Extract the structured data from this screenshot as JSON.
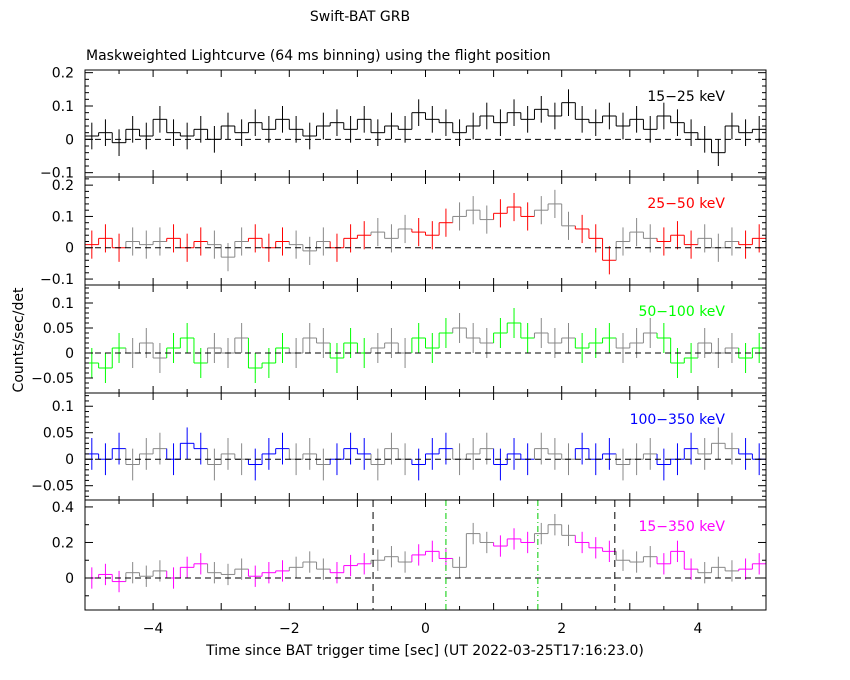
{
  "chart_data": {
    "type": "line",
    "title": "Swift-BAT GRB",
    "subtitle": "Maskweighted Lightcurve (64 ms binning) using the flight position",
    "xlabel": "Time since BAT trigger time [sec] (UT 2022-03-25T17:16:23.0)",
    "ylabel": "Counts/sec/det",
    "xlim": [
      -5,
      5
    ],
    "x_ticks": [
      -4,
      -2,
      0,
      2,
      4
    ],
    "x_tick_labels": [
      "−4",
      "−2",
      "0",
      "2",
      "4"
    ],
    "bin_width": 0.2,
    "x_start": -5,
    "alt_color": "#888888",
    "panels": [
      {
        "name": "15-25 keV",
        "label": "15−25 keV",
        "color": "#000000",
        "ylim": [
          -0.113,
          0.208
        ],
        "y_ticks": [
          -0.1,
          0,
          0.1,
          0.2
        ],
        "y_tick_labels": [
          "−0.1",
          "0",
          "0.1",
          "0.2"
        ],
        "minor_step": 0.02,
        "error": 0.04,
        "values": [
          0.01,
          0.02,
          -0.01,
          0.03,
          0.01,
          0.06,
          0.02,
          0.01,
          0.03,
          0.0,
          0.04,
          0.02,
          0.05,
          0.03,
          0.06,
          0.03,
          0.01,
          0.04,
          0.05,
          0.03,
          0.06,
          0.02,
          0.04,
          0.03,
          0.08,
          0.06,
          0.05,
          0.02,
          0.04,
          0.07,
          0.05,
          0.08,
          0.06,
          0.09,
          0.07,
          0.11,
          0.06,
          0.05,
          0.07,
          0.04,
          0.06,
          0.03,
          0.07,
          0.05,
          0.02,
          0.0,
          -0.04,
          0.04,
          0.02,
          0.03
        ]
      },
      {
        "name": "25-50 keV",
        "label": "25−50 keV",
        "color": "#ff0000",
        "ylim": [
          -0.119,
          0.226
        ],
        "y_ticks": [
          -0.1,
          0,
          0.1,
          0.2
        ],
        "y_tick_labels": [
          "−0.1",
          "0",
          "0.1",
          "0.2"
        ],
        "minor_step": 0.02,
        "error": 0.045,
        "values": [
          0.01,
          0.03,
          0.0,
          0.02,
          0.01,
          0.02,
          0.03,
          0.0,
          0.02,
          0.01,
          -0.03,
          0.02,
          0.03,
          0.0,
          0.02,
          0.01,
          -0.01,
          0.02,
          0.0,
          0.03,
          0.04,
          0.05,
          0.03,
          0.06,
          0.05,
          0.04,
          0.08,
          0.1,
          0.12,
          0.09,
          0.11,
          0.13,
          0.1,
          0.12,
          0.14,
          0.07,
          0.06,
          0.03,
          -0.04,
          0.02,
          0.05,
          0.03,
          0.02,
          0.04,
          0.01,
          0.03,
          0.0,
          0.02,
          0.01,
          0.03
        ]
      },
      {
        "name": "50-100 keV",
        "label": "50−100 keV",
        "color": "#00ff00",
        "ylim": [
          -0.08,
          0.136
        ],
        "y_ticks": [
          -0.05,
          0,
          0.05,
          0.1
        ],
        "y_tick_labels": [
          "−0.05",
          "0",
          "0.05",
          "0.1"
        ],
        "minor_step": 0.01,
        "error": 0.03,
        "values": [
          -0.02,
          -0.03,
          0.01,
          0.0,
          0.02,
          -0.01,
          0.01,
          0.03,
          -0.02,
          0.01,
          0.0,
          0.03,
          -0.03,
          -0.02,
          0.01,
          0.0,
          0.03,
          0.02,
          -0.01,
          0.02,
          0.0,
          0.01,
          0.02,
          0.0,
          0.03,
          0.01,
          0.04,
          0.05,
          0.03,
          0.02,
          0.04,
          0.06,
          0.03,
          0.04,
          0.02,
          0.03,
          0.01,
          0.02,
          0.03,
          0.01,
          0.02,
          0.04,
          0.03,
          -0.02,
          -0.01,
          0.02,
          0.0,
          0.01,
          -0.01,
          0.01
        ]
      },
      {
        "name": "100-350 keV",
        "label": "100−350 keV",
        "color": "#0000ff",
        "ylim": [
          -0.077,
          0.125
        ],
        "y_ticks": [
          -0.05,
          0,
          0.05,
          0.1
        ],
        "y_tick_labels": [
          "−0.05",
          "0",
          "0.05",
          "0.1"
        ],
        "minor_step": 0.01,
        "error": 0.03,
        "values": [
          0.01,
          0.0,
          0.02,
          -0.01,
          0.01,
          0.02,
          0.0,
          0.03,
          0.02,
          -0.01,
          0.01,
          0.0,
          -0.01,
          0.01,
          0.02,
          0.0,
          0.01,
          -0.01,
          0.0,
          0.02,
          0.01,
          -0.01,
          0.02,
          0.0,
          -0.01,
          0.01,
          0.02,
          0.0,
          0.01,
          0.02,
          -0.01,
          0.01,
          0.0,
          0.02,
          0.01,
          0.0,
          0.02,
          0.0,
          0.01,
          -0.01,
          0.0,
          0.01,
          -0.01,
          0.0,
          0.02,
          0.01,
          0.03,
          0.02,
          0.01,
          0.0
        ]
      },
      {
        "name": "15-350 keV",
        "label": "15−350 keV",
        "color": "#ff00ff",
        "ylim": [
          -0.18,
          0.439
        ],
        "y_ticks": [
          0,
          0.2,
          0.4
        ],
        "y_tick_labels": [
          "0",
          "0.2",
          "0.4"
        ],
        "minor_step": 0.1,
        "error": 0.06,
        "values": [
          0.0,
          0.02,
          -0.02,
          0.03,
          0.01,
          0.04,
          0.0,
          0.06,
          0.08,
          0.03,
          0.02,
          0.05,
          0.01,
          0.03,
          0.04,
          0.06,
          0.09,
          0.05,
          0.03,
          0.07,
          0.08,
          0.1,
          0.12,
          0.09,
          0.13,
          0.15,
          0.11,
          0.06,
          0.25,
          0.2,
          0.18,
          0.22,
          0.2,
          0.25,
          0.3,
          0.24,
          0.2,
          0.17,
          0.15,
          0.1,
          0.09,
          0.12,
          0.08,
          0.15,
          0.05,
          0.03,
          0.06,
          0.04,
          0.05,
          0.08
        ],
        "vlines": [
          {
            "x": -0.77,
            "color": "#000000",
            "style": "dashed"
          },
          {
            "x": 2.78,
            "color": "#000000",
            "style": "dashed"
          },
          {
            "x": 0.3,
            "color": "#00cc00",
            "style": "dashdot"
          },
          {
            "x": 1.65,
            "color": "#00cc00",
            "style": "dashdot"
          }
        ]
      }
    ]
  }
}
